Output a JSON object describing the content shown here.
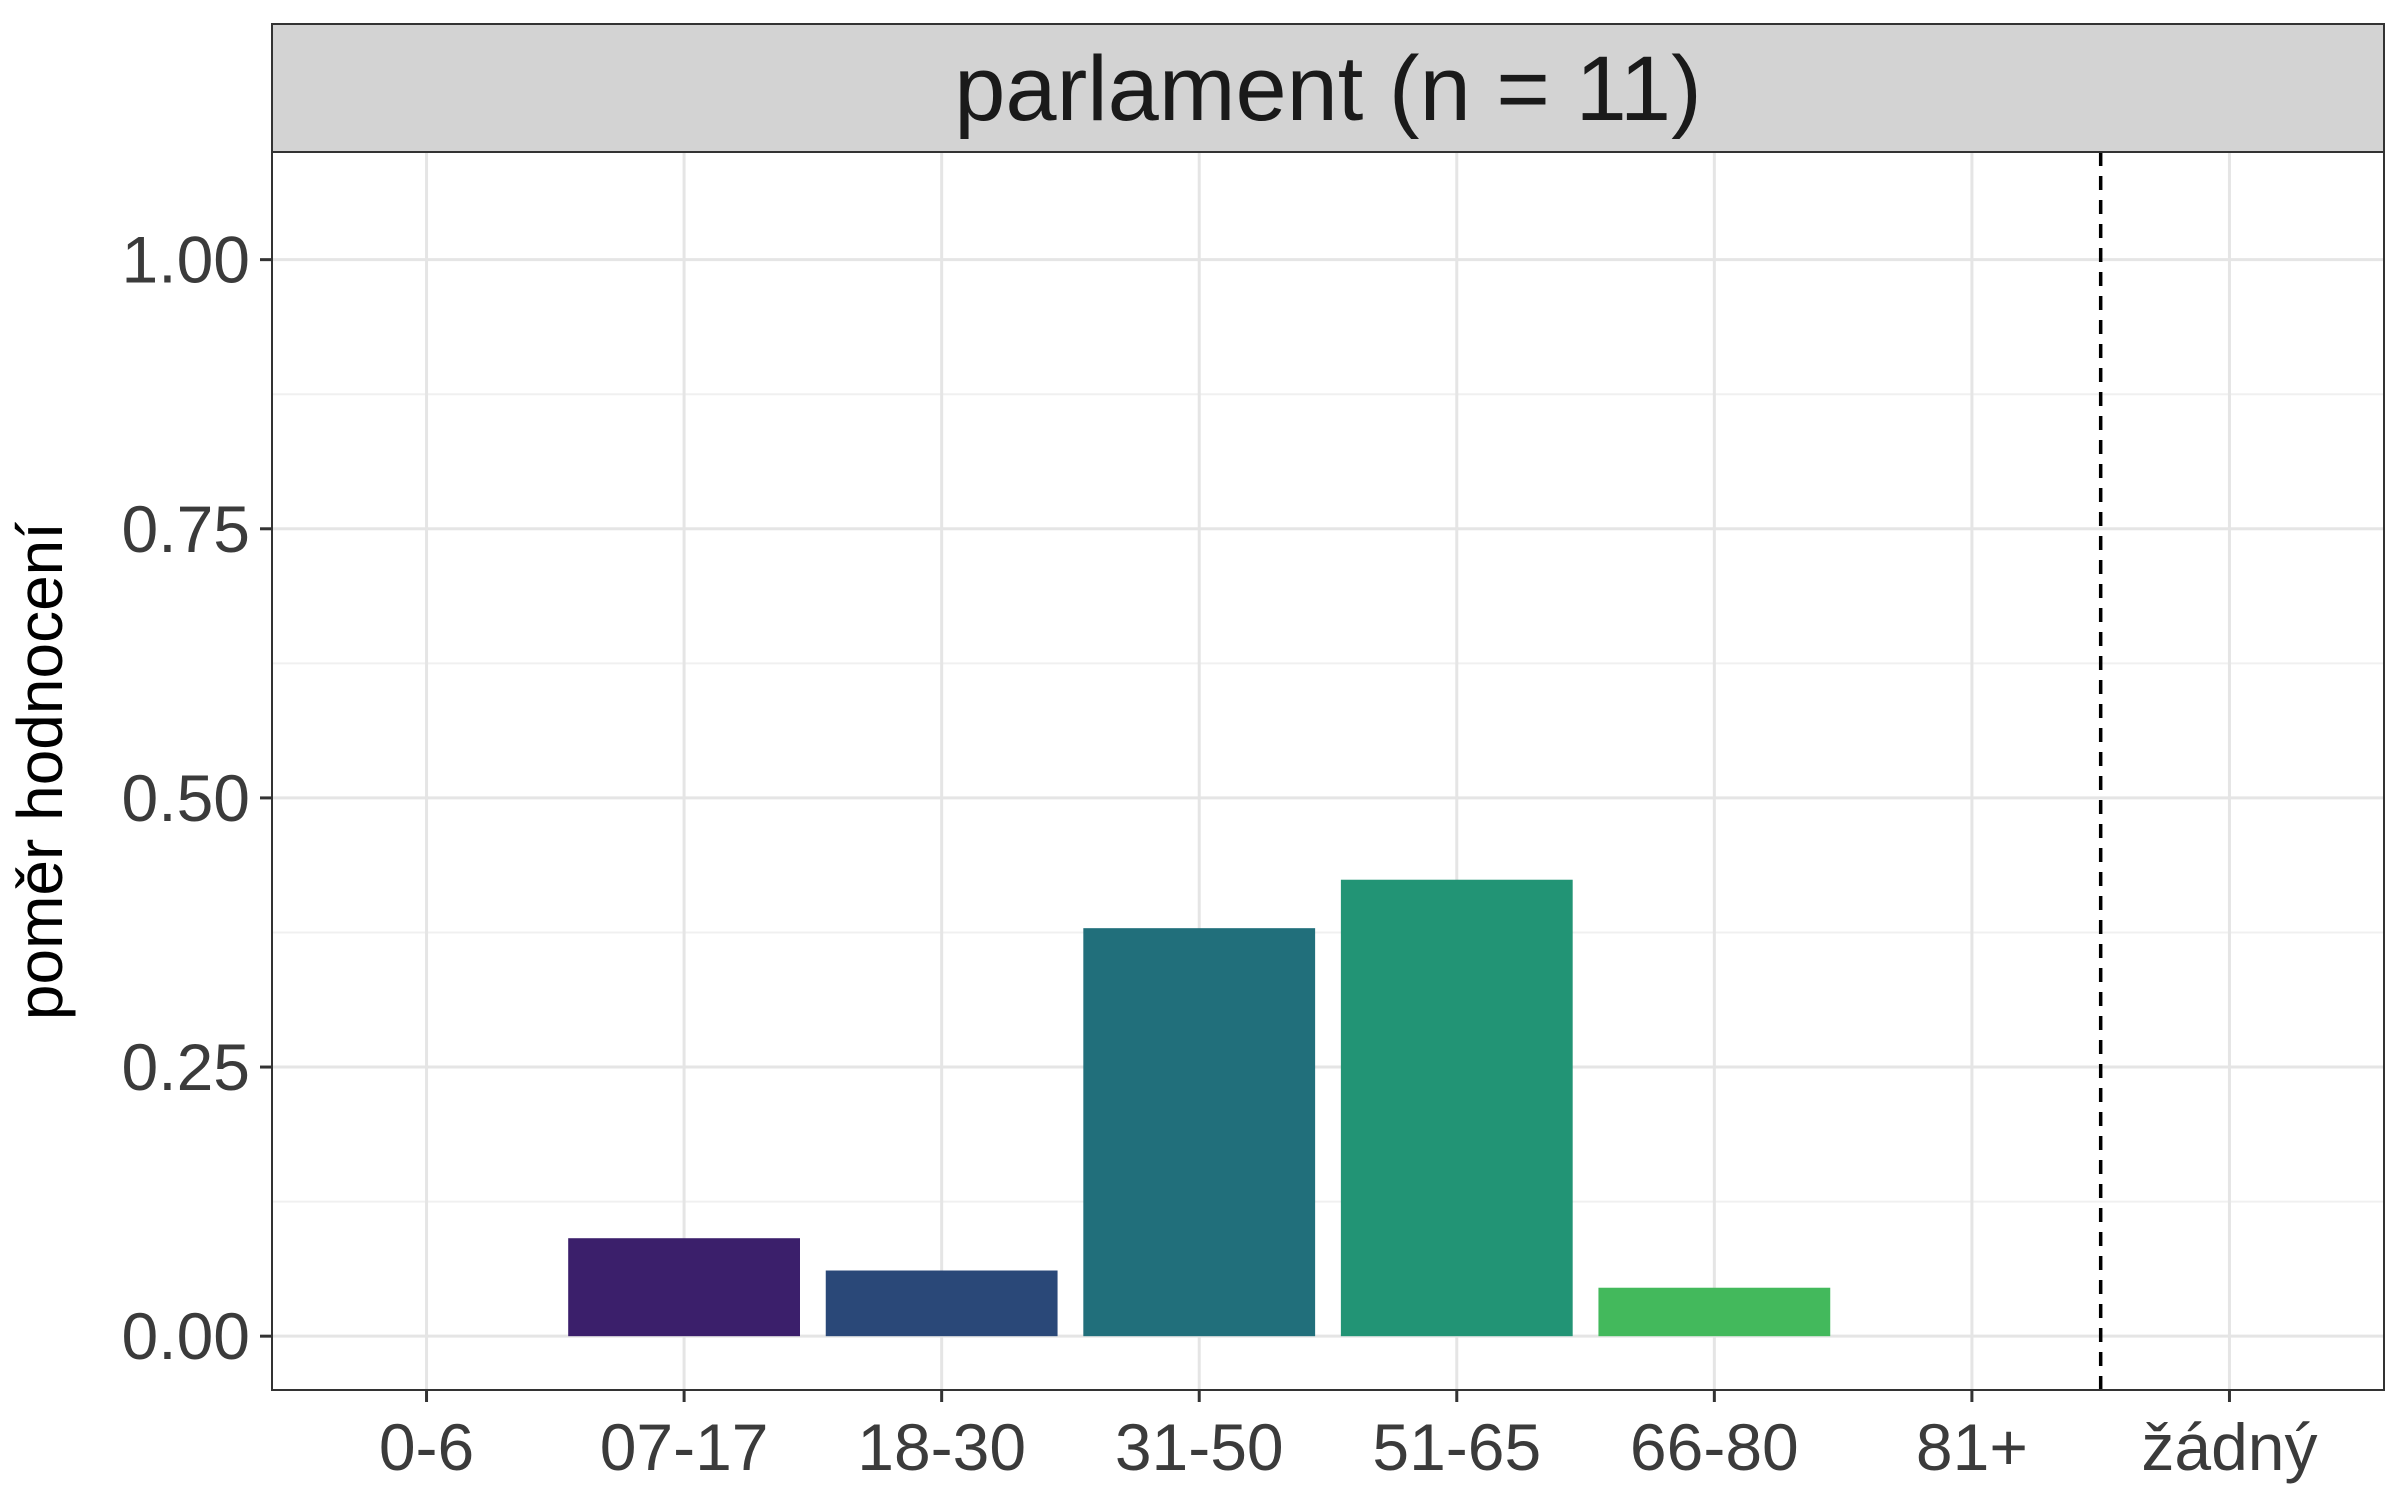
{
  "chart_data": {
    "type": "bar",
    "facet_title": "parlament (n = 11)",
    "categories": [
      "0-6",
      "07-17",
      "18-30",
      "31-50",
      "51-65",
      "66-80",
      "81+",
      "žádný"
    ],
    "values": [
      0,
      0.091,
      0.061,
      0.379,
      0.424,
      0.045,
      0,
      0
    ],
    "colors": [
      "#440154",
      "#3b1f6b",
      "#2a4878",
      "#216f7b",
      "#229475",
      "#43b95c",
      "#a8d83c",
      "#fde725"
    ],
    "ylabel": "poměr hodnocení",
    "xlabel": "",
    "ylim": [
      -0.05,
      1.1
    ],
    "yticks": [
      0,
      0.25,
      0.5,
      0.75,
      1
    ],
    "ytick_labels": [
      "0.00",
      "0.25",
      "0.50",
      "0.75",
      "1.00"
    ],
    "reference_line": {
      "after_category": "81+",
      "style": "dashed"
    },
    "grid": true,
    "legend": "none"
  }
}
